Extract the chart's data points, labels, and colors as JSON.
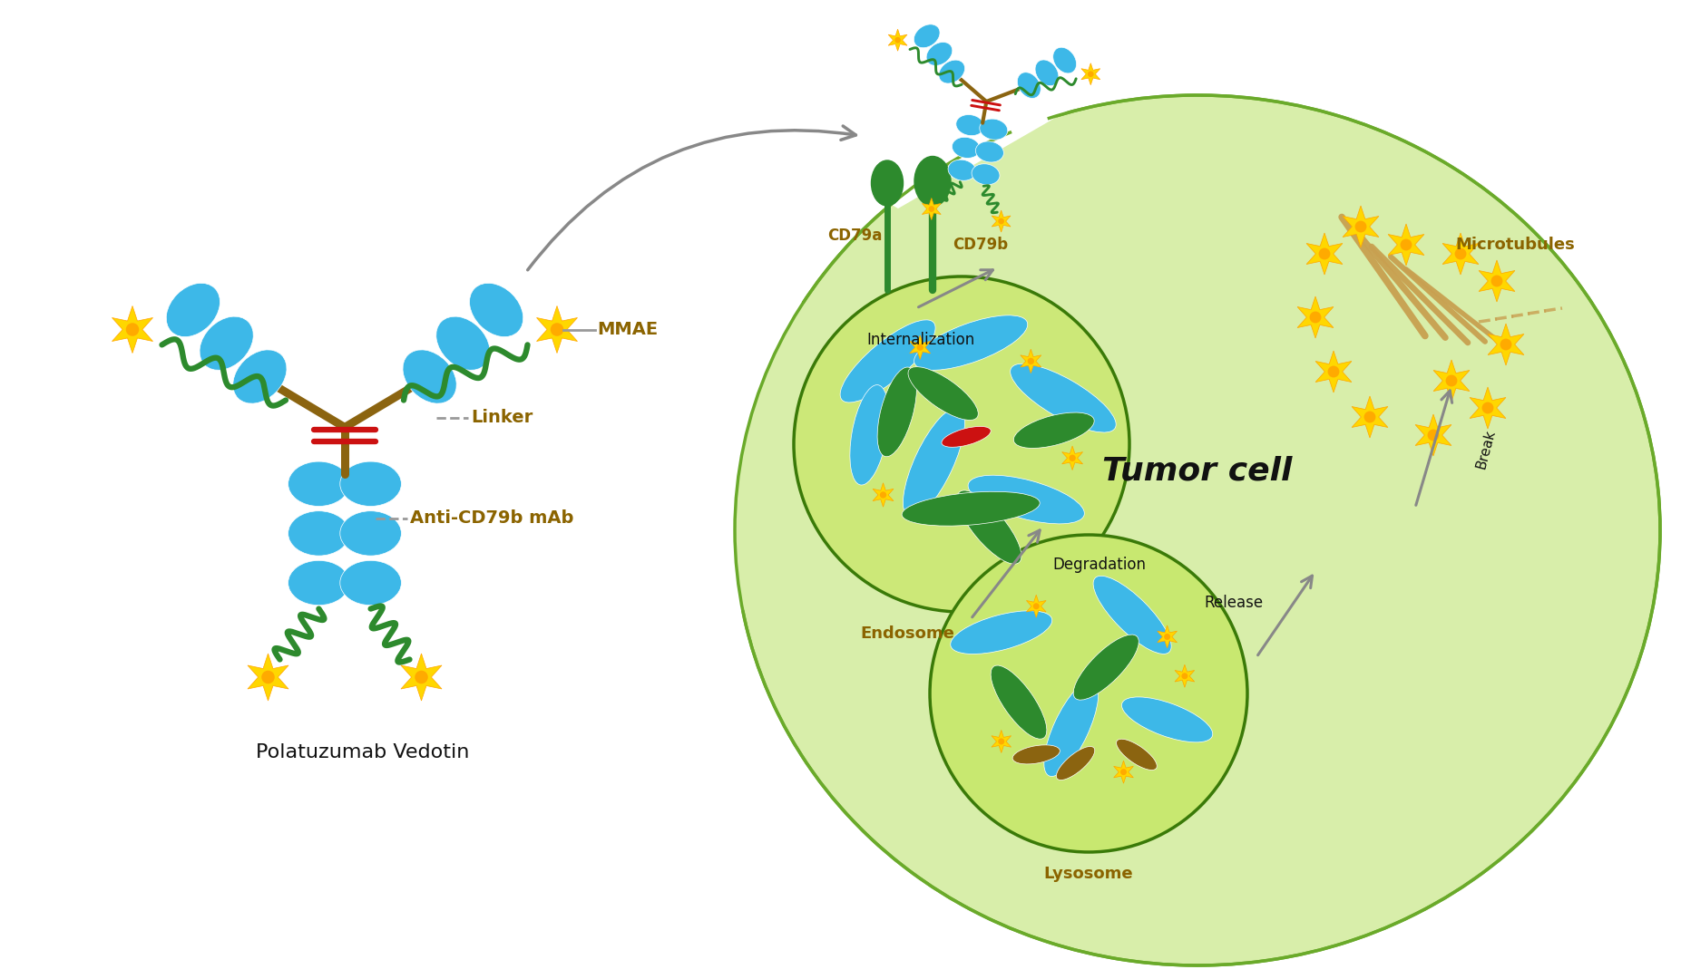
{
  "bg_color": "#ffffff",
  "antibody_blue": "#3db8e8",
  "antibody_green": "#2d8a2d",
  "linker_brown": "#8B6410",
  "red_hinge": "#cc1111",
  "star_yellow": "#FFD700",
  "star_orange": "#FFA500",
  "cell_green_light": "#d8eeaa",
  "cell_green_border": "#6aaa2a",
  "organelle_light": "#c8e880",
  "organelle_border": "#4a8a10",
  "microtubule_brown": "#c8a050",
  "gray_arrow": "#888888",
  "text_brown": "#8B6400",
  "text_black": "#111111",
  "label_mmae": "MMAE",
  "label_linker": "Linker",
  "label_anti": "Anti-CD79b mAb",
  "label_polat": "Polatuzumab Vedotin",
  "label_cd79a": "CD79a",
  "label_cd79b": "CD79b",
  "label_internalization": "Internalization",
  "label_endosome": "Endosome",
  "label_degradation": "Degradation",
  "label_lysosome": "Lysosome",
  "label_release": "Release",
  "label_break": "Break",
  "label_microtubules": "Microtubules",
  "label_tumor_cell": "Tumor cell"
}
